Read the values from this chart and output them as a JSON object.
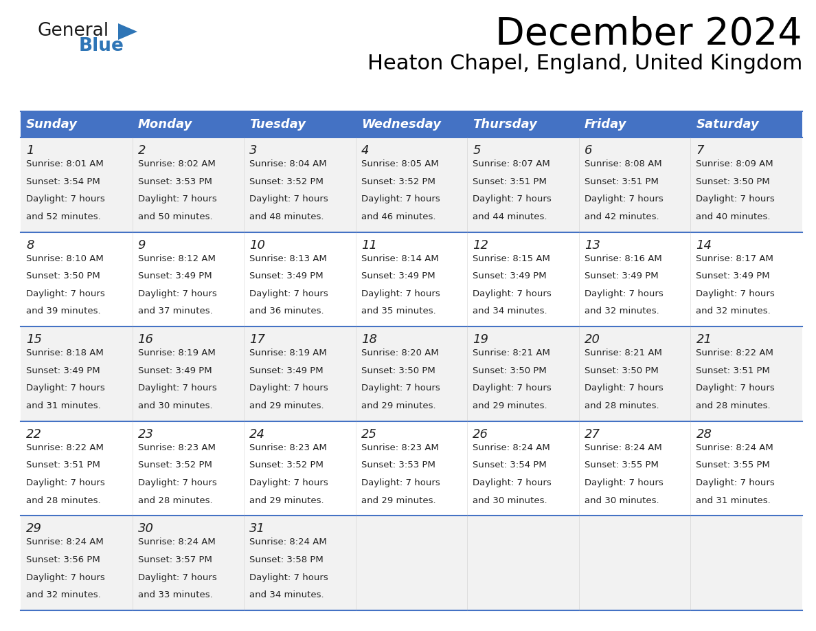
{
  "title": "December 2024",
  "subtitle": "Heaton Chapel, England, United Kingdom",
  "header_bg": "#4472C4",
  "header_text_color": "#FFFFFF",
  "header_font_size": 13,
  "day_names": [
    "Sunday",
    "Monday",
    "Tuesday",
    "Wednesday",
    "Thursday",
    "Friday",
    "Saturday"
  ],
  "title_font_size": 40,
  "subtitle_font_size": 22,
  "cell_text_color": "#222222",
  "cell_number_font_size": 13,
  "cell_info_font_size": 9.5,
  "grid_color": "#4472C4",
  "row_bg_odd": "#F2F2F2",
  "row_bg_even": "#FFFFFF",
  "logo_color1": "#1a1a1a",
  "logo_color2": "#2E75B6",
  "logo_triangle_color": "#2E75B6",
  "weeks": [
    [
      {
        "day": 1,
        "sunrise": "8:01 AM",
        "sunset": "3:54 PM",
        "dl_min": "52"
      },
      {
        "day": 2,
        "sunrise": "8:02 AM",
        "sunset": "3:53 PM",
        "dl_min": "50"
      },
      {
        "day": 3,
        "sunrise": "8:04 AM",
        "sunset": "3:52 PM",
        "dl_min": "48"
      },
      {
        "day": 4,
        "sunrise": "8:05 AM",
        "sunset": "3:52 PM",
        "dl_min": "46"
      },
      {
        "day": 5,
        "sunrise": "8:07 AM",
        "sunset": "3:51 PM",
        "dl_min": "44"
      },
      {
        "day": 6,
        "sunrise": "8:08 AM",
        "sunset": "3:51 PM",
        "dl_min": "42"
      },
      {
        "day": 7,
        "sunrise": "8:09 AM",
        "sunset": "3:50 PM",
        "dl_min": "40"
      }
    ],
    [
      {
        "day": 8,
        "sunrise": "8:10 AM",
        "sunset": "3:50 PM",
        "dl_min": "39"
      },
      {
        "day": 9,
        "sunrise": "8:12 AM",
        "sunset": "3:49 PM",
        "dl_min": "37"
      },
      {
        "day": 10,
        "sunrise": "8:13 AM",
        "sunset": "3:49 PM",
        "dl_min": "36"
      },
      {
        "day": 11,
        "sunrise": "8:14 AM",
        "sunset": "3:49 PM",
        "dl_min": "35"
      },
      {
        "day": 12,
        "sunrise": "8:15 AM",
        "sunset": "3:49 PM",
        "dl_min": "34"
      },
      {
        "day": 13,
        "sunrise": "8:16 AM",
        "sunset": "3:49 PM",
        "dl_min": "32"
      },
      {
        "day": 14,
        "sunrise": "8:17 AM",
        "sunset": "3:49 PM",
        "dl_min": "32"
      }
    ],
    [
      {
        "day": 15,
        "sunrise": "8:18 AM",
        "sunset": "3:49 PM",
        "dl_min": "31"
      },
      {
        "day": 16,
        "sunrise": "8:19 AM",
        "sunset": "3:49 PM",
        "dl_min": "30"
      },
      {
        "day": 17,
        "sunrise": "8:19 AM",
        "sunset": "3:49 PM",
        "dl_min": "29"
      },
      {
        "day": 18,
        "sunrise": "8:20 AM",
        "sunset": "3:50 PM",
        "dl_min": "29"
      },
      {
        "day": 19,
        "sunrise": "8:21 AM",
        "sunset": "3:50 PM",
        "dl_min": "29"
      },
      {
        "day": 20,
        "sunrise": "8:21 AM",
        "sunset": "3:50 PM",
        "dl_min": "28"
      },
      {
        "day": 21,
        "sunrise": "8:22 AM",
        "sunset": "3:51 PM",
        "dl_min": "28"
      }
    ],
    [
      {
        "day": 22,
        "sunrise": "8:22 AM",
        "sunset": "3:51 PM",
        "dl_min": "28"
      },
      {
        "day": 23,
        "sunrise": "8:23 AM",
        "sunset": "3:52 PM",
        "dl_min": "28"
      },
      {
        "day": 24,
        "sunrise": "8:23 AM",
        "sunset": "3:52 PM",
        "dl_min": "29"
      },
      {
        "day": 25,
        "sunrise": "8:23 AM",
        "sunset": "3:53 PM",
        "dl_min": "29"
      },
      {
        "day": 26,
        "sunrise": "8:24 AM",
        "sunset": "3:54 PM",
        "dl_min": "30"
      },
      {
        "day": 27,
        "sunrise": "8:24 AM",
        "sunset": "3:55 PM",
        "dl_min": "30"
      },
      {
        "day": 28,
        "sunrise": "8:24 AM",
        "sunset": "3:55 PM",
        "dl_min": "31"
      }
    ],
    [
      {
        "day": 29,
        "sunrise": "8:24 AM",
        "sunset": "3:56 PM",
        "dl_min": "32"
      },
      {
        "day": 30,
        "sunrise": "8:24 AM",
        "sunset": "3:57 PM",
        "dl_min": "33"
      },
      {
        "day": 31,
        "sunrise": "8:24 AM",
        "sunset": "3:58 PM",
        "dl_min": "34"
      },
      null,
      null,
      null,
      null
    ]
  ]
}
